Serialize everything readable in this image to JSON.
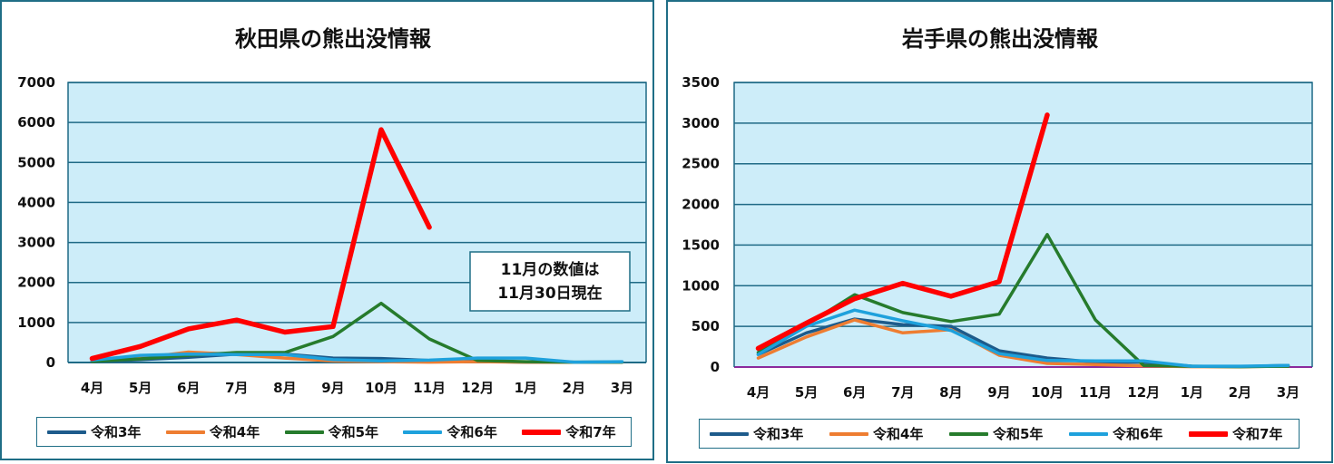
{
  "colors": {
    "plot_background": "#cdedf9",
    "gridline": "#1f6a86",
    "frame": "#1f6e86",
    "baseline_right": "#8b2a9c"
  },
  "chart_data": [
    {
      "type": "line",
      "title": "秋田県の熊出没情報",
      "categories": [
        "4月",
        "5月",
        "6月",
        "7月",
        "8月",
        "9月",
        "10月",
        "11月",
        "12月",
        "1月",
        "2月",
        "3月"
      ],
      "ylim": [
        0,
        7000
      ],
      "yticks": [
        0,
        1000,
        2000,
        3000,
        4000,
        5000,
        6000,
        7000
      ],
      "grid": true,
      "legend": "bottom",
      "annotation": [
        "11月の数値は",
        "11月30日現在"
      ],
      "series": [
        {
          "name": "令和3年",
          "color": "#1d5b8b",
          "values": [
            30,
            70,
            130,
            210,
            210,
            110,
            100,
            50,
            30,
            10,
            5,
            10
          ]
        },
        {
          "name": "令和4年",
          "color": "#ee7d31",
          "values": [
            40,
            110,
            260,
            200,
            110,
            40,
            20,
            10,
            20,
            10,
            5,
            10
          ]
        },
        {
          "name": "令和5年",
          "color": "#267b2c",
          "values": [
            30,
            90,
            180,
            250,
            250,
            650,
            1480,
            590,
            50,
            20,
            10,
            10
          ]
        },
        {
          "name": "令和6年",
          "color": "#1ea1dc",
          "values": [
            60,
            180,
            210,
            200,
            200,
            70,
            40,
            60,
            110,
            110,
            10,
            20
          ]
        },
        {
          "name": "令和7年",
          "color": "#ff0000",
          "values": [
            100,
            400,
            840,
            1060,
            760,
            900,
            5820,
            3380,
            null,
            null,
            null,
            null
          ]
        }
      ]
    },
    {
      "type": "line",
      "title": "岩手県の熊出没情報",
      "categories": [
        "4月",
        "5月",
        "6月",
        "7月",
        "8月",
        "9月",
        "10月",
        "11月",
        "12月",
        "1月",
        "2月",
        "3月"
      ],
      "ylim": [
        0,
        3500
      ],
      "yticks": [
        0,
        500,
        1000,
        1500,
        2000,
        2500,
        3000,
        3500
      ],
      "grid": true,
      "legend": "bottom",
      "series": [
        {
          "name": "令和3年",
          "color": "#1d5b8b",
          "values": [
            155,
            420,
            590,
            520,
            500,
            200,
            110,
            60,
            60,
            10,
            5,
            20
          ]
        },
        {
          "name": "令和4年",
          "color": "#ee7d31",
          "values": [
            110,
            370,
            580,
            420,
            460,
            145,
            45,
            30,
            15,
            5,
            5,
            10
          ]
        },
        {
          "name": "令和5年",
          "color": "#267b2c",
          "values": [
            180,
            520,
            890,
            670,
            560,
            650,
            1630,
            580,
            20,
            10,
            5,
            10
          ]
        },
        {
          "name": "令和6年",
          "color": "#1ea1dc",
          "values": [
            155,
            500,
            700,
            570,
            450,
            165,
            80,
            75,
            75,
            10,
            10,
            20
          ]
        },
        {
          "name": "令和7年",
          "color": "#ff0000",
          "values": [
            230,
            540,
            840,
            1030,
            870,
            1050,
            3100,
            null,
            null,
            null,
            null,
            null
          ]
        }
      ]
    }
  ]
}
